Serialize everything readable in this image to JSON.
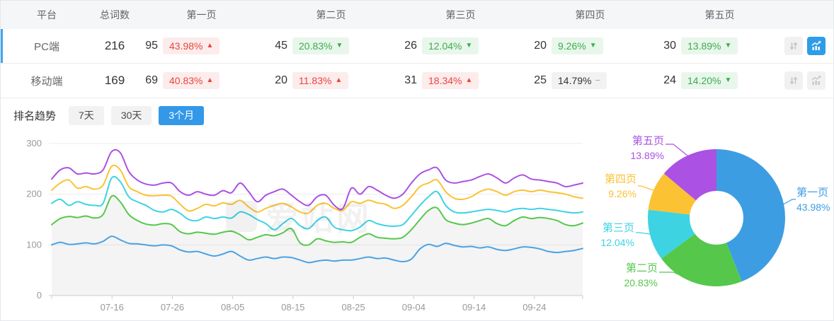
{
  "table": {
    "headers": [
      "平台",
      "总词数",
      "第一页",
      "第二页",
      "第三页",
      "第四页",
      "第五页"
    ],
    "trend_symbols": {
      "up": "▲",
      "down": "▼",
      "flat": "−"
    },
    "rows": [
      {
        "platform": "PC端",
        "total": "216",
        "selected": true,
        "chart_active": true,
        "pages": [
          {
            "count": "95",
            "delta": "43.98%",
            "dir": "up"
          },
          {
            "count": "45",
            "delta": "20.83%",
            "dir": "down"
          },
          {
            "count": "26",
            "delta": "12.04%",
            "dir": "down"
          },
          {
            "count": "20",
            "delta": "9.26%",
            "dir": "down"
          },
          {
            "count": "30",
            "delta": "13.89%",
            "dir": "down"
          }
        ]
      },
      {
        "platform": "移动端",
        "total": "169",
        "selected": false,
        "chart_active": false,
        "pages": [
          {
            "count": "69",
            "delta": "40.83%",
            "dir": "up"
          },
          {
            "count": "20",
            "delta": "11.83%",
            "dir": "up"
          },
          {
            "count": "31",
            "delta": "18.34%",
            "dir": "up"
          },
          {
            "count": "25",
            "delta": "14.79%",
            "dir": "flat"
          },
          {
            "count": "24",
            "delta": "14.20%",
            "dir": "down"
          }
        ]
      }
    ]
  },
  "trend": {
    "title": "排名趋势",
    "tabs": [
      {
        "label": "7天",
        "active": false
      },
      {
        "label": "30天",
        "active": false
      },
      {
        "label": "3个月",
        "active": true
      }
    ],
    "watermark": "爱站网"
  },
  "colors": {
    "accent_blue": "#3398e8",
    "row_indicator": "#41a4ee",
    "badge_up_text": "#e7463c",
    "badge_down_text": "#3aae49",
    "series": {
      "page1": "#4aa3e3",
      "page2": "#55c84b",
      "page3": "#3dd3e3",
      "page4": "#fbc233",
      "page5": "#ab51e3"
    }
  },
  "chart_data": [
    {
      "type": "line",
      "title": "排名趋势 (3个月, PC端, 按排名页累计词数)",
      "x_ticks": [
        "07-16",
        "07-26",
        "08-05",
        "08-15",
        "08-25",
        "09-04",
        "09-14",
        "09-24"
      ],
      "x_tick_days": [
        10,
        20,
        30,
        40,
        50,
        60,
        70,
        80
      ],
      "total_days": 88,
      "y_ticks": [
        0,
        100,
        200,
        300
      ],
      "ylim": [
        0,
        300
      ],
      "grid": true,
      "legend_position": "none",
      "series": [
        {
          "name": "第一页",
          "color": "#4aa3e3",
          "area": false,
          "values": [
            100,
            105,
            101,
            102,
            104,
            102,
            107,
            117,
            110,
            103,
            102,
            100,
            98,
            100,
            98,
            90,
            86,
            87,
            82,
            78,
            82,
            87,
            78,
            70,
            73,
            76,
            73,
            76,
            75,
            70,
            65,
            68,
            70,
            68,
            70,
            70,
            73,
            76,
            73,
            74,
            70,
            67,
            72,
            92,
            101,
            97,
            103,
            99,
            96,
            97,
            94,
            96,
            91,
            89,
            92,
            96,
            95,
            92,
            87,
            85,
            87,
            89,
            93
          ]
        },
        {
          "name": "第二页",
          "color": "#55c84b",
          "area": true,
          "values": [
            140,
            152,
            156,
            154,
            157,
            153,
            160,
            196,
            185,
            160,
            148,
            141,
            139,
            142,
            140,
            126,
            122,
            125,
            123,
            121,
            125,
            127,
            120,
            110,
            115,
            120,
            118,
            124,
            132,
            104,
            100,
            112,
            108,
            105,
            106,
            105,
            115,
            122,
            115,
            113,
            112,
            115,
            130,
            150,
            168,
            173,
            150,
            143,
            140,
            143,
            148,
            152,
            142,
            138,
            148,
            155,
            152,
            154,
            152,
            148,
            140,
            138,
            143
          ]
        },
        {
          "name": "第三页",
          "color": "#3dd3e3",
          "area": false,
          "values": [
            182,
            190,
            178,
            185,
            180,
            178,
            182,
            232,
            225,
            195,
            185,
            178,
            168,
            165,
            170,
            162,
            150,
            148,
            155,
            152,
            155,
            153,
            165,
            160,
            150,
            142,
            130,
            142,
            152,
            138,
            132,
            148,
            155,
            135,
            130,
            128,
            135,
            148,
            142,
            138,
            137,
            140,
            158,
            178,
            195,
            205,
            178,
            165,
            163,
            165,
            168,
            170,
            168,
            165,
            170,
            172,
            170,
            172,
            170,
            168,
            165,
            163,
            165
          ]
        },
        {
          "name": "第四页",
          "color": "#fbc233",
          "area": false,
          "values": [
            208,
            222,
            228,
            212,
            215,
            210,
            218,
            255,
            248,
            215,
            205,
            198,
            197,
            198,
            196,
            180,
            167,
            172,
            180,
            177,
            183,
            180,
            188,
            175,
            165,
            172,
            178,
            182,
            175,
            165,
            163,
            178,
            182,
            172,
            168,
            185,
            182,
            188,
            183,
            180,
            172,
            178,
            195,
            215,
            222,
            228,
            205,
            192,
            190,
            195,
            205,
            210,
            205,
            198,
            205,
            208,
            205,
            208,
            205,
            203,
            200,
            195,
            192
          ]
        },
        {
          "name": "第五页",
          "color": "#ab51e3",
          "area": false,
          "values": [
            230,
            248,
            252,
            240,
            242,
            240,
            248,
            284,
            282,
            245,
            228,
            220,
            218,
            222,
            222,
            205,
            198,
            205,
            200,
            198,
            207,
            203,
            222,
            205,
            185,
            198,
            205,
            210,
            198,
            185,
            178,
            195,
            198,
            178,
            172,
            212,
            200,
            215,
            208,
            198,
            192,
            200,
            222,
            240,
            248,
            252,
            228,
            222,
            225,
            228,
            235,
            240,
            232,
            222,
            232,
            238,
            230,
            228,
            225,
            222,
            215,
            218,
            222
          ]
        }
      ]
    },
    {
      "type": "pie",
      "title": "PC端 排名页占比",
      "donut": true,
      "slices": [
        {
          "label": "第一页",
          "value": 43.98,
          "pct": "43.98%",
          "color": "#3d9de2"
        },
        {
          "label": "第二页",
          "value": 20.83,
          "pct": "20.83%",
          "color": "#55c84b"
        },
        {
          "label": "第三页",
          "value": 12.04,
          "pct": "12.04%",
          "color": "#3dd3e3"
        },
        {
          "label": "第四页",
          "value": 9.26,
          "pct": "9.26%",
          "color": "#fbc233"
        },
        {
          "label": "第五页",
          "value": 13.89,
          "pct": "13.89%",
          "color": "#ab51e3"
        }
      ]
    }
  ]
}
